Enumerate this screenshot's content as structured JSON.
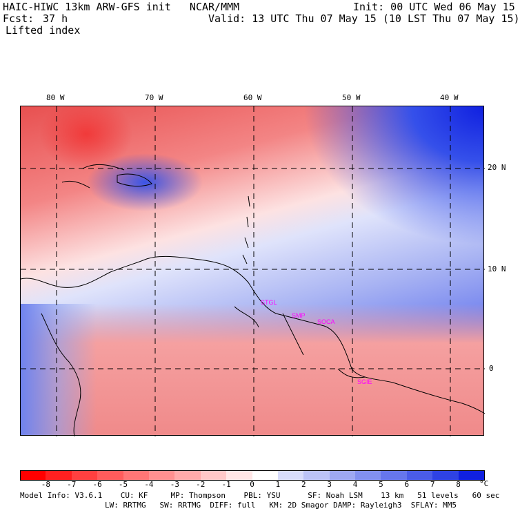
{
  "header": {
    "title": "HAIC-HIWC 13km ARW-GFS init   NCAR/MMM",
    "init": "Init: 00 UTC Wed 06 May 15",
    "fcst_label": "Fcst:",
    "fcst_value": "37 h",
    "valid": "Valid: 13 UTC Thu 07 May 15 (10 LST Thu 07 May 15)",
    "field": "Lifted index"
  },
  "map": {
    "lon_labels": [
      "80 W",
      "70 W",
      "60 W",
      "50 W",
      "40 W"
    ],
    "lat_labels": [
      "20 N",
      "10 N",
      "0"
    ],
    "stations": [
      "STGL",
      "SMP",
      "SOCA",
      "SGIE"
    ],
    "colors": {
      "strong_pos": "#1020e0",
      "neg": "#f03a3a",
      "neutral": "#ffffff"
    }
  },
  "colorbar": {
    "labels": [
      "-8",
      "-7",
      "-6",
      "-5",
      "-4",
      "-3",
      "-2",
      "-1",
      "0",
      "1",
      "2",
      "3",
      "4",
      "5",
      "6",
      "7",
      "8"
    ],
    "unit": "°C",
    "colors": [
      "#ff0000",
      "#ff2020",
      "#ff4040",
      "#ff5c5c",
      "#ff7676",
      "#ff9090",
      "#ffaaaa",
      "#ffc8c8",
      "#ffe6e6",
      "#ffffff",
      "#d8dcfa",
      "#bcc3f6",
      "#9ea8f2",
      "#8290ef",
      "#6676ec",
      "#4a5ce8",
      "#2e42e4",
      "#1020e0"
    ]
  },
  "footer": {
    "line1": "Model Info: V3.6.1    CU: KF     MP: Thompson    PBL: YSU      SF: Noah LSM    13 km   51 levels   60 sec",
    "line2": "LW: RRTMG   SW: RRTMG  DIFF: full   KM: 2D Smagor DAMP: Rayleigh3  SFLAY: MM5"
  }
}
